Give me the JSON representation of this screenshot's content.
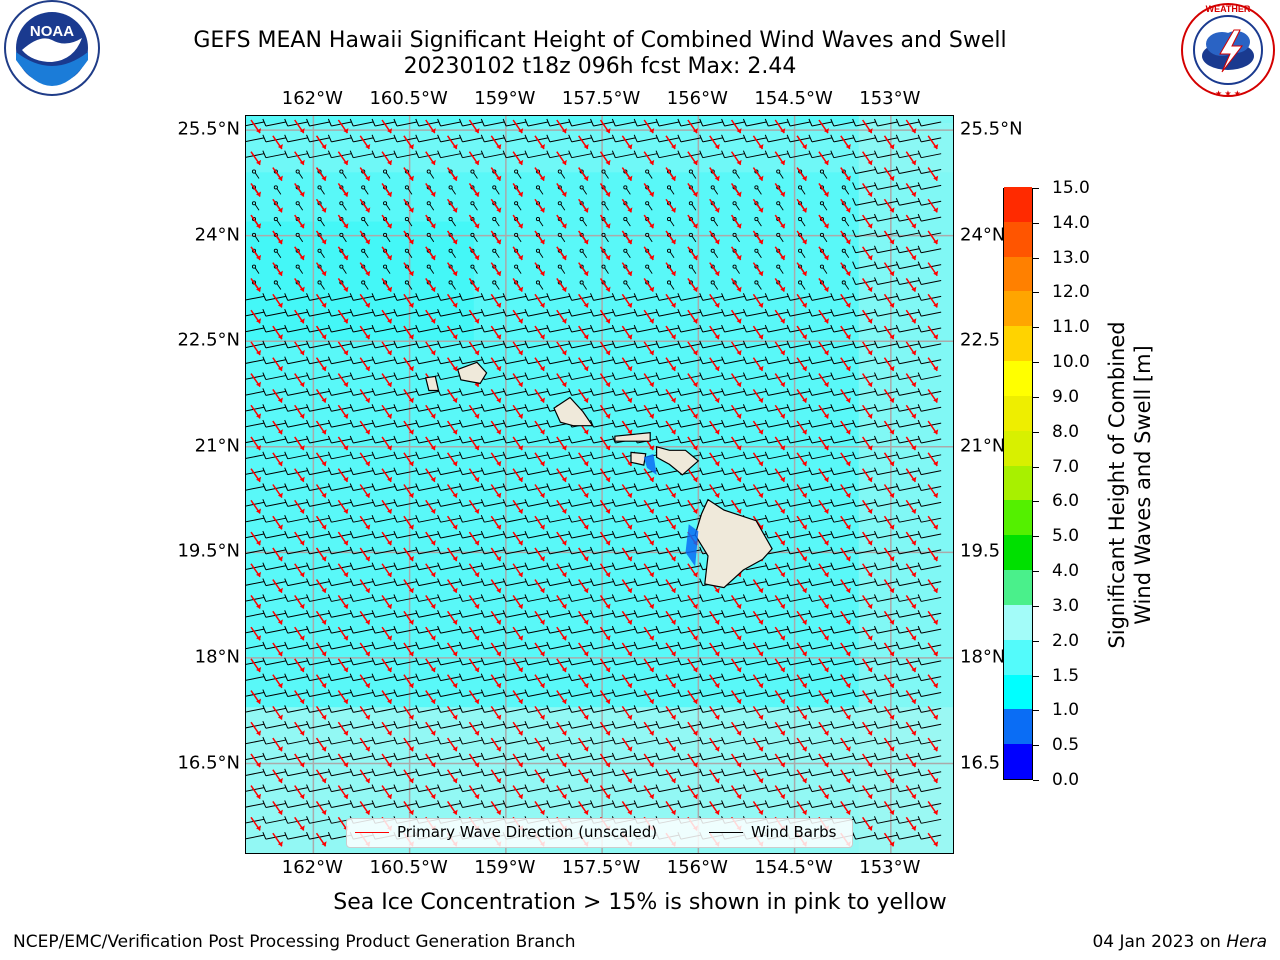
{
  "header": {
    "title_line1": "GEFS MEAN Hawaii Significant Height of Combined Wind Waves and Swell",
    "title_line2": "20230102 t18z 096h fcst   Max: 2.44"
  },
  "logos": {
    "left": {
      "text": "NOAA",
      "ring_text": "NATIONAL OCEANIC AND ATMOSPHERIC ADMINISTRATION",
      "bottom_text": "U.S. DEPARTMENT OF COMMERCE",
      "icon": "noaa-logo"
    },
    "right": {
      "ring_text": "NATIONAL WEATHER SERVICE",
      "icon": "nws-logo"
    }
  },
  "axes": {
    "lon_labels": [
      "162°W",
      "160.5°W",
      "159°W",
      "157.5°W",
      "156°W",
      "154.5°W",
      "153°W"
    ],
    "lat_labels": [
      "25.5°N",
      "24°N",
      "22.5°N",
      "21°N",
      "19.5°N",
      "18°N",
      "16.5°N"
    ],
    "lat_labels_right": [
      "25.5°N",
      "24°N",
      "22.5",
      "21°N",
      "19.5",
      "18°N",
      "16.5"
    ],
    "lon_values": [
      -162,
      -160.5,
      -159,
      -157.5,
      -156,
      -154.5,
      -153
    ],
    "lat_values": [
      25.5,
      24,
      22.5,
      21,
      19.5,
      18,
      16.5
    ],
    "lon_range": [
      -163.05,
      -152.0
    ],
    "lat_range": [
      15.2,
      25.7
    ]
  },
  "legend": {
    "wave_direction_label": "Primary Wave Direction (unscaled)",
    "wave_direction_color": "#ff0000",
    "wind_barbs_label": "Wind Barbs",
    "wind_barbs_color": "#000000"
  },
  "colorbar": {
    "title_line1": "Significant Height of Combined",
    "title_line2": "Wind Waves and Swell [m]",
    "levels": [
      "0.0",
      "0.5",
      "1.0",
      "1.5",
      "2.0",
      "3.0",
      "4.0",
      "5.0",
      "6.0",
      "7.0",
      "8.0",
      "9.0",
      "10.0",
      "11.0",
      "12.0",
      "13.0",
      "14.0",
      "15.0"
    ],
    "colors": [
      "#0000ff",
      "#0a6df5",
      "#00ffff",
      "#53fbfb",
      "#a3fcf9",
      "#4af08b",
      "#00e000",
      "#54f000",
      "#a8f000",
      "#d8f000",
      "#eeee00",
      "#ffff00",
      "#ffd300",
      "#ffa500",
      "#ff8000",
      "#ff5500",
      "#ff2a00"
    ]
  },
  "map": {
    "land_color": "#efe9da",
    "ocean_color": "#59f8f8",
    "grid_color": "#aaaaaa"
  },
  "footer": {
    "sea_ice_note": "Sea Ice Concentration > 15% is shown in pink to yellow",
    "credit": "NCEP/EMC/Verification Post Processing Product Generation Branch",
    "date": "04 Jan 2023 on",
    "host": "Hera"
  }
}
